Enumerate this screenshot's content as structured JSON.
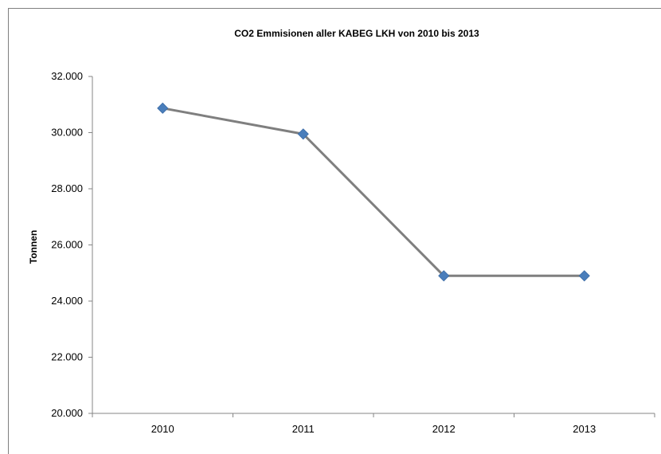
{
  "chart_data": {
    "type": "line",
    "title": "CO2 Emmisionen   aller  KABEG LKH von 2010 bis 2013",
    "xlabel": "",
    "ylabel": "Tonnen",
    "categories": [
      "2010",
      "2011",
      "2012",
      "2013"
    ],
    "series": [
      {
        "values": [
          30870,
          29950,
          24900,
          24900
        ]
      }
    ],
    "ylim": [
      20000,
      32000
    ],
    "yticks": [
      20000,
      22000,
      24000,
      26000,
      28000,
      30000,
      32000
    ],
    "ytick_labels": [
      "20.000",
      "22.000",
      "24.000",
      "26.000",
      "28.000",
      "30.000",
      "32.000"
    ],
    "grid": false,
    "legend": "none",
    "colors": {
      "line": "#7f7f7f",
      "marker": "#4a7ebb"
    }
  }
}
